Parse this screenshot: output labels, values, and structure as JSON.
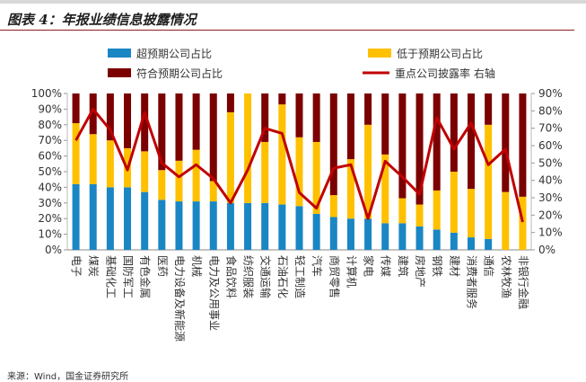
{
  "header": {
    "title": "图表 4：年报业绩信息披露情况"
  },
  "chart_data": {
    "type": "bar",
    "stacked": true,
    "categories": [
      "电子",
      "煤炭",
      "基础化工",
      "国防军工",
      "有色金属",
      "医药",
      "电力设备及新能源",
      "机械",
      "电力及公用事业",
      "食品饮料",
      "纺织服装",
      "交通运输",
      "石油石化",
      "轻工制造",
      "汽车",
      "商贸零售",
      "计算机",
      "家电",
      "传媒",
      "建筑",
      "房地产",
      "钢铁",
      "建材",
      "消费者服务",
      "通信",
      "农林牧渔",
      "非银行金融"
    ],
    "series": [
      {
        "name": "超预期公司占比",
        "color": "#1a86c4",
        "axis": "left",
        "values": [
          42,
          42,
          40,
          40,
          37,
          32,
          31,
          31,
          31,
          30,
          30,
          30,
          29,
          28,
          23,
          21,
          20,
          20,
          17,
          17,
          15,
          13,
          11,
          8,
          7,
          0,
          0
        ]
      },
      {
        "name": "低于预期公司占比",
        "color": "#ffc000",
        "axis": "left",
        "values": [
          39,
          32,
          30,
          25,
          26,
          19,
          26,
          33,
          13,
          58,
          70,
          39,
          64,
          44,
          46,
          14,
          38,
          60,
          44,
          16,
          14,
          25,
          39,
          31,
          73,
          37,
          34
        ]
      },
      {
        "name": "符合预期公司占比",
        "color": "#7b0000",
        "axis": "left",
        "values": [
          19,
          26,
          30,
          35,
          37,
          49,
          43,
          36,
          56,
          12,
          0,
          31,
          7,
          28,
          31,
          65,
          42,
          20,
          39,
          67,
          71,
          62,
          50,
          61,
          20,
          63,
          66
        ]
      },
      {
        "name": "重点公司披露率",
        "color": "#c00000",
        "axis": "right",
        "type": "line",
        "values": [
          63,
          81,
          69,
          46,
          79,
          50,
          42,
          49,
          41,
          27,
          46,
          70,
          67,
          33,
          24,
          47,
          49,
          18,
          51,
          42,
          32,
          76,
          58,
          73,
          49,
          58,
          16
        ]
      }
    ],
    "ylim": [
      0,
      100
    ],
    "ylim_right": [
      0,
      90
    ],
    "y_ticks": [
      "0%",
      "10%",
      "20%",
      "30%",
      "40%",
      "50%",
      "60%",
      "70%",
      "80%",
      "90%",
      "100%"
    ],
    "y_right_ticks": [
      "0%",
      "10%",
      "20%",
      "30%",
      "40%",
      "50%",
      "60%",
      "70%",
      "80%",
      "90%"
    ],
    "legend_right_axis_note": "右轴",
    "legend_position": "top"
  },
  "source": "来源：Wind，国金证券研究所"
}
